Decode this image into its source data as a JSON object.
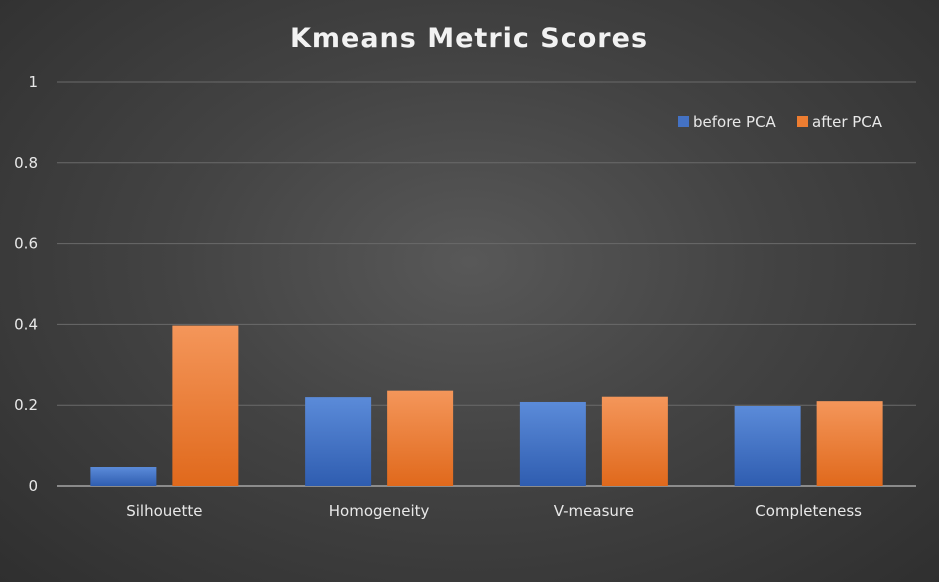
{
  "chart_data": {
    "type": "bar",
    "title": "Kmeans Metric Scores",
    "xlabel": "",
    "ylabel": "",
    "categories": [
      "Silhouette",
      "Homogeneity",
      "V-measure",
      "Completeness"
    ],
    "series": [
      {
        "name": "before PCA",
        "values": [
          0.047,
          0.22,
          0.208,
          0.198
        ],
        "color": "#4472C4"
      },
      {
        "name": "after PCA",
        "values": [
          0.397,
          0.236,
          0.221,
          0.21
        ],
        "color": "#ED7D31"
      }
    ],
    "ylim": [
      0,
      1
    ],
    "yticks": [
      0,
      0.2,
      0.4,
      0.6,
      0.8,
      1
    ],
    "ytick_labels": [
      "0",
      "0.2",
      "0.4",
      "0.6",
      "0.8",
      "1"
    ],
    "grid": true,
    "legend_position": "top-right",
    "background": "#404040"
  }
}
